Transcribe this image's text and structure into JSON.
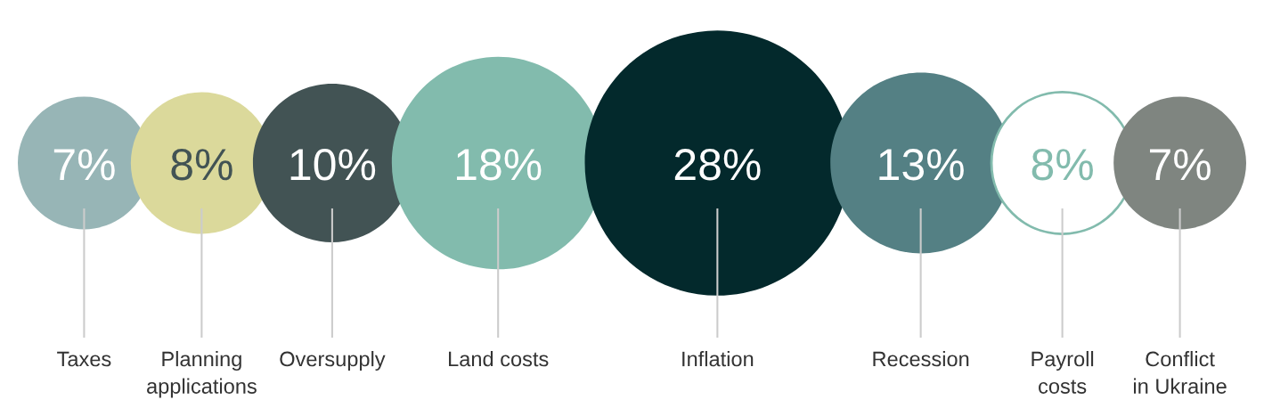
{
  "chart_data": {
    "type": "other",
    "categories": [
      "Taxes",
      "Planning\napplications",
      "Oversupply",
      "Land costs",
      "Inflation",
      "Recession",
      "Payroll\ncosts",
      "Conflict\nin Ukraine"
    ],
    "values": [
      7,
      8,
      10,
      18,
      28,
      13,
      8,
      7
    ],
    "value_labels": [
      "7%",
      "8%",
      "10%",
      "18%",
      "28%",
      "13%",
      "8%",
      "7%"
    ],
    "colors": [
      "#97b5b6",
      "#dbd99b",
      "#425354",
      "#82bbad",
      "#03292c",
      "#548084",
      "#ffffff",
      "#7f8580"
    ],
    "data_labels": true
  }
}
